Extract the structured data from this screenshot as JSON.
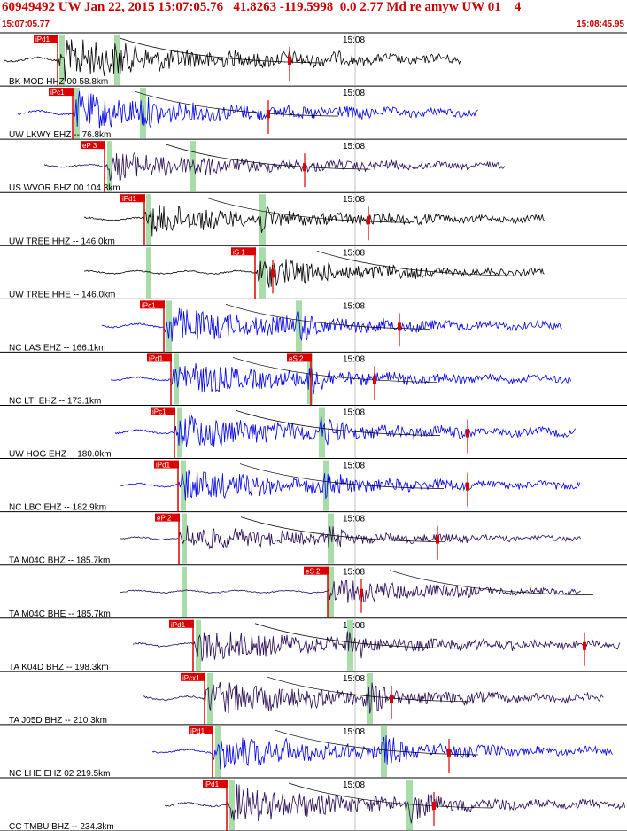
{
  "header": {
    "title": "60949492 UW Jan 22, 2015 15:07:05.76   41.8263 -119.5998  0.0 2.77 Md re amyw UW 01    4",
    "start_time": "15:07:05.77",
    "end_time": "15:08:45.95"
  },
  "colors": {
    "header_text": "#cc0000",
    "black_trace": "#000000",
    "blue_trace": "#0000ee",
    "purple_trace": "#2a0a55",
    "pick_box": "#dd0000",
    "pick_text": "#ffffff",
    "theory_band": "#a8dca8",
    "panel_line": "#000000",
    "grid_line": "#999999",
    "label_text": "#000000"
  },
  "time_marker_label": "15:08",
  "channels": [
    {
      "label": "BK MOD HHZ 00 58.8km",
      "color": "black",
      "pick": "iPd1",
      "pick2": "",
      "pick_x": 65,
      "p_band": 67,
      "s_band": 129,
      "red_mark": 327,
      "sig_start": 5,
      "sig_end": 520,
      "amp": 1.0
    },
    {
      "label": "UW LKWY EHZ -- 76.8km",
      "color": "blue",
      "pick": "iPc1",
      "pick2": "",
      "pick_x": 82,
      "p_band": 84,
      "s_band": 158,
      "red_mark": 303,
      "sig_start": 20,
      "sig_end": 540,
      "amp": 0.9
    },
    {
      "label": "US WVOR BHZ 00 104.3km",
      "color": "purple",
      "pick": "eP 3",
      "pick2": "",
      "pick_x": 118,
      "p_band": 121,
      "s_band": 214,
      "red_mark": 344,
      "sig_start": 50,
      "sig_end": 570,
      "amp": 0.7
    },
    {
      "label": "UW TREE HHZ -- 146.0km",
      "color": "black",
      "pick": "iPd1",
      "pick2": "",
      "pick_x": 163,
      "p_band": 165,
      "s_band": 293,
      "red_mark": 416,
      "sig_start": 95,
      "sig_end": 615,
      "amp": 0.75
    },
    {
      "label": "UW TREE HHE -- 146.0km",
      "color": "black",
      "pick": "iS 1",
      "pick2": "",
      "pick_x": 288,
      "p_band": 165,
      "s_band": 293,
      "red_mark": 308,
      "sig_start": 95,
      "sig_end": 615,
      "amp": 0.7
    },
    {
      "label": "NC LAS EHZ -- 166.1km",
      "color": "blue",
      "pick": "iPc1",
      "pick2": "",
      "pick_x": 185,
      "p_band": 188,
      "s_band": 334,
      "red_mark": 451,
      "sig_start": 115,
      "sig_end": 635,
      "amp": 0.85
    },
    {
      "label": "NC LTI EHZ -- 173.1km",
      "color": "blue",
      "pick": "iPd1",
      "pick2": "eS 2",
      "pick_x": 193,
      "p_band": 196,
      "s_band": 347,
      "red_mark": 423,
      "sig_start": 125,
      "sig_end": 645,
      "amp": 0.8
    },
    {
      "label": "UW HOG EHZ -- 180.0km",
      "color": "blue",
      "pick": "iPc1",
      "pick2": "",
      "pick_x": 197,
      "p_band": 200,
      "s_band": 360,
      "red_mark": 528,
      "sig_start": 130,
      "sig_end": 650,
      "amp": 0.85
    },
    {
      "label": "NC LBC EHZ -- 182.9km",
      "color": "blue",
      "pick": "iPd1",
      "pick2": "",
      "pick_x": 201,
      "p_band": 204,
      "s_band": 365,
      "red_mark": 528,
      "sig_start": 135,
      "sig_end": 655,
      "amp": 0.8
    },
    {
      "label": "TA M04C BHZ -- 185.7km",
      "color": "purple",
      "pick": "eP 2",
      "pick2": "",
      "pick_x": 202,
      "p_band": 205,
      "s_band": 370,
      "red_mark": 494,
      "sig_start": 136,
      "sig_end": 656,
      "amp": 0.6
    },
    {
      "label": "TA M04C BHE -- 185.7km",
      "color": "purple",
      "pick": "eS 2",
      "pick2": "",
      "pick_x": 370,
      "p_band": 205,
      "s_band": 370,
      "red_mark": 408,
      "sig_start": 136,
      "sig_end": 656,
      "amp": 0.6
    },
    {
      "label": "TA K04D BHZ -- 198.3km",
      "color": "purple",
      "pick": "iPd1",
      "pick2": "",
      "pick_x": 218,
      "p_band": 221,
      "s_band": 392,
      "red_mark": 660,
      "sig_start": 150,
      "sig_end": 700,
      "amp": 0.8
    },
    {
      "label": "TA J05D BHZ -- 210.3km",
      "color": "purple",
      "pick": "iPcx1",
      "pick2": "",
      "pick_x": 231,
      "p_band": 234,
      "s_band": 414,
      "red_mark": 442,
      "sig_start": 162,
      "sig_end": 682,
      "amp": 0.85
    },
    {
      "label": "NC LHE EHZ 02 219.5km",
      "color": "blue",
      "pick": "iPd1",
      "pick2": "",
      "pick_x": 240,
      "p_band": 243,
      "s_band": 430,
      "red_mark": 507,
      "sig_start": 172,
      "sig_end": 692,
      "amp": 0.85
    },
    {
      "label": "CC TMBU BHZ -- 234.3km",
      "color": "purple",
      "pick": "iPd1",
      "pick2": "",
      "pick_x": 256,
      "p_band": 259,
      "s_band": 459,
      "red_mark": 490,
      "sig_start": 186,
      "sig_end": 706,
      "amp": 0.9
    }
  ]
}
